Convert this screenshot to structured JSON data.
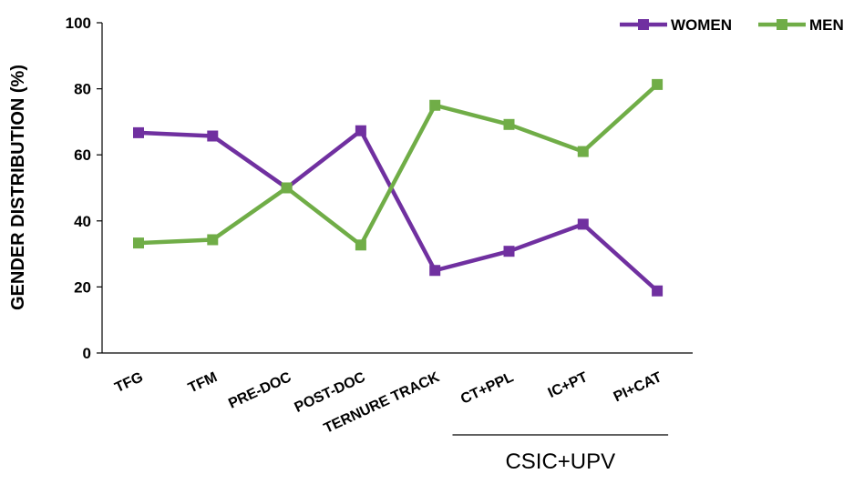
{
  "chart_data": {
    "type": "line",
    "categories": [
      "TFG",
      "TFM",
      "PRE-DOC",
      "POST-DOC",
      "TERNURE TRACK",
      "CT+PPL",
      "IC+PT",
      "PI+CAT"
    ],
    "series": [
      {
        "name": "WOMEN",
        "color": "#7030a0",
        "marker": "square",
        "values": [
          66.7,
          65.7,
          50.0,
          67.3,
          25.0,
          30.8,
          39.0,
          18.8
        ]
      },
      {
        "name": "MEN",
        "color": "#70ad47",
        "marker": "square",
        "values": [
          33.3,
          34.3,
          50.0,
          32.7,
          75.0,
          69.2,
          61.0,
          81.3
        ]
      }
    ],
    "ylabel": "GENDER DISTRIBUTION (%)",
    "ylim": [
      0,
      100
    ],
    "yticks": [
      0,
      20,
      40,
      60,
      80,
      100
    ],
    "grid": false,
    "legend": "top-right",
    "group_annotation": {
      "label": "CSIC+UPV",
      "from_category": "CT+PPL",
      "to_category": "PI+CAT"
    }
  }
}
